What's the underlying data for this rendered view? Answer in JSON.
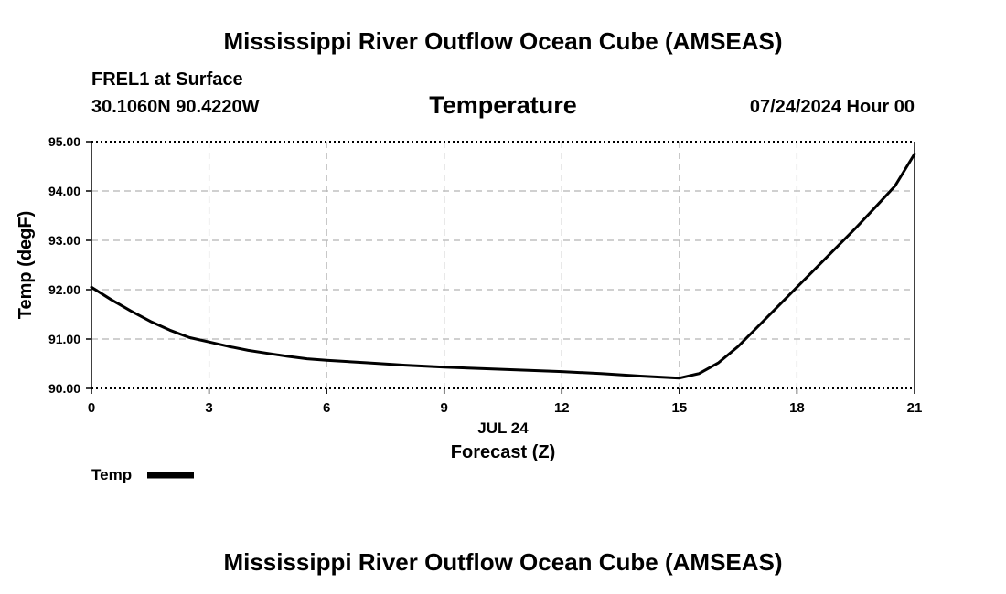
{
  "header": {
    "title": "Mississippi River Outflow Ocean Cube (AMSEAS)",
    "station": "FREL1 at Surface",
    "coords": "30.1060N  90.4220W",
    "datetime": "07/24/2024 Hour 00"
  },
  "footer": {
    "title": "Mississippi River Outflow Ocean Cube (AMSEAS)"
  },
  "chart_data": {
    "type": "line",
    "title": "Temperature",
    "xlabel": "Forecast (Z)",
    "xlabel_date": "JUL 24",
    "ylabel": "Temp (degF)",
    "xlim": [
      0,
      21
    ],
    "ylim": [
      90.0,
      95.0
    ],
    "x_ticks": [
      0,
      3,
      6,
      9,
      12,
      15,
      18,
      21
    ],
    "x_tick_labels": [
      "0",
      "3",
      "6",
      "9",
      "12",
      "15",
      "18",
      "21"
    ],
    "y_ticks": [
      90.0,
      91.0,
      92.0,
      93.0,
      94.0,
      95.0
    ],
    "y_tick_labels": [
      "90.00",
      "91.00",
      "92.00",
      "93.00",
      "94.00",
      "95.00"
    ],
    "grid": true,
    "legend": "bottom-left",
    "series": [
      {
        "name": "Temp",
        "color": "#000000",
        "x": [
          0,
          0.5,
          1,
          1.5,
          2,
          2.5,
          3,
          3.5,
          4,
          4.5,
          5,
          5.5,
          6,
          7,
          8,
          9,
          10,
          11,
          12,
          13,
          14,
          15,
          15.5,
          16,
          16.5,
          17,
          17.5,
          18,
          18.5,
          19,
          19.5,
          20,
          20.5,
          21
        ],
        "values": [
          92.05,
          91.8,
          91.57,
          91.36,
          91.18,
          91.03,
          90.94,
          90.85,
          90.77,
          90.71,
          90.65,
          90.6,
          90.57,
          90.52,
          90.47,
          90.43,
          90.4,
          90.37,
          90.34,
          90.3,
          90.25,
          90.21,
          90.3,
          90.52,
          90.85,
          91.25,
          91.65,
          92.05,
          92.45,
          92.85,
          93.25,
          93.67,
          94.1,
          94.75
        ]
      }
    ]
  }
}
